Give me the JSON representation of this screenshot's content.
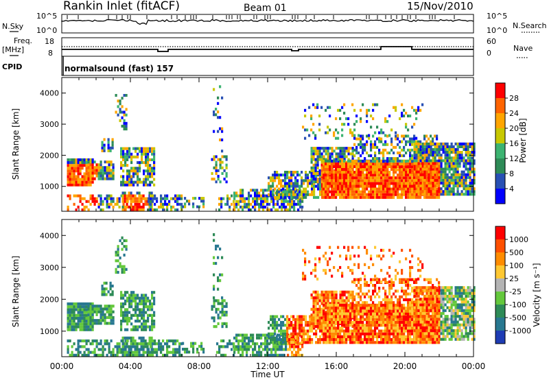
{
  "header": {
    "title": "Rankin Inlet (fitACF)",
    "beam": "Beam 01",
    "date": "15/Nov/2010"
  },
  "status_panels": {
    "nsky_label": "N.Sky",
    "nsky_ticks": [
      "10^5",
      "10^0"
    ],
    "nsearch_label": "N.Search",
    "nsearch_ticks": [
      "10^5",
      "10^0"
    ],
    "freq_label": "Freq.",
    "freq_unit": "[MHz]",
    "freq_ticks": [
      "18",
      "8"
    ],
    "nave_label": "Nave",
    "nave_ticks": [
      "60",
      "0"
    ],
    "cpid_label": "CPID",
    "cpid_value": "normalsound (fast) 157"
  },
  "chart_data": [
    {
      "type": "heatmap",
      "name": "power",
      "ylabel": "Slant Range [km]",
      "ylim": [
        200,
        4500
      ],
      "yticks": [
        1000,
        2000,
        3000,
        4000
      ],
      "xlim": [
        0,
        24
      ],
      "colorbar_label": "Power [dB]",
      "colorbar_ticks": [
        "28",
        "24",
        "20",
        "16",
        "12",
        "8",
        "4"
      ],
      "colorbar_colors": [
        "#0000ff",
        "#2850b4",
        "#2e8b57",
        "#3cb371",
        "#c8c800",
        "#ffa500",
        "#ff6400",
        "#ff0000"
      ]
    },
    {
      "type": "heatmap",
      "name": "velocity",
      "ylabel": "Slant Range [km]",
      "ylim": [
        200,
        4500
      ],
      "yticks": [
        1000,
        2000,
        3000,
        4000
      ],
      "xlim": [
        0,
        24
      ],
      "xlabel": "Time UT",
      "xticks": [
        "00:00",
        "04:00",
        "08:00",
        "12:00",
        "16:00",
        "20:00",
        "00:00"
      ],
      "colorbar_label": "Velocity [m s⁻¹]",
      "colorbar_ticks": [
        "1000",
        "500",
        "100",
        "25",
        "-25",
        "-100",
        "-500",
        "-1000"
      ],
      "colorbar_colors": [
        "#1e3cb4",
        "#287890",
        "#2e8b57",
        "#64c83c",
        "#b4b4b4",
        "#ffc832",
        "#ff8c00",
        "#ff5000",
        "#ff0000"
      ]
    }
  ]
}
